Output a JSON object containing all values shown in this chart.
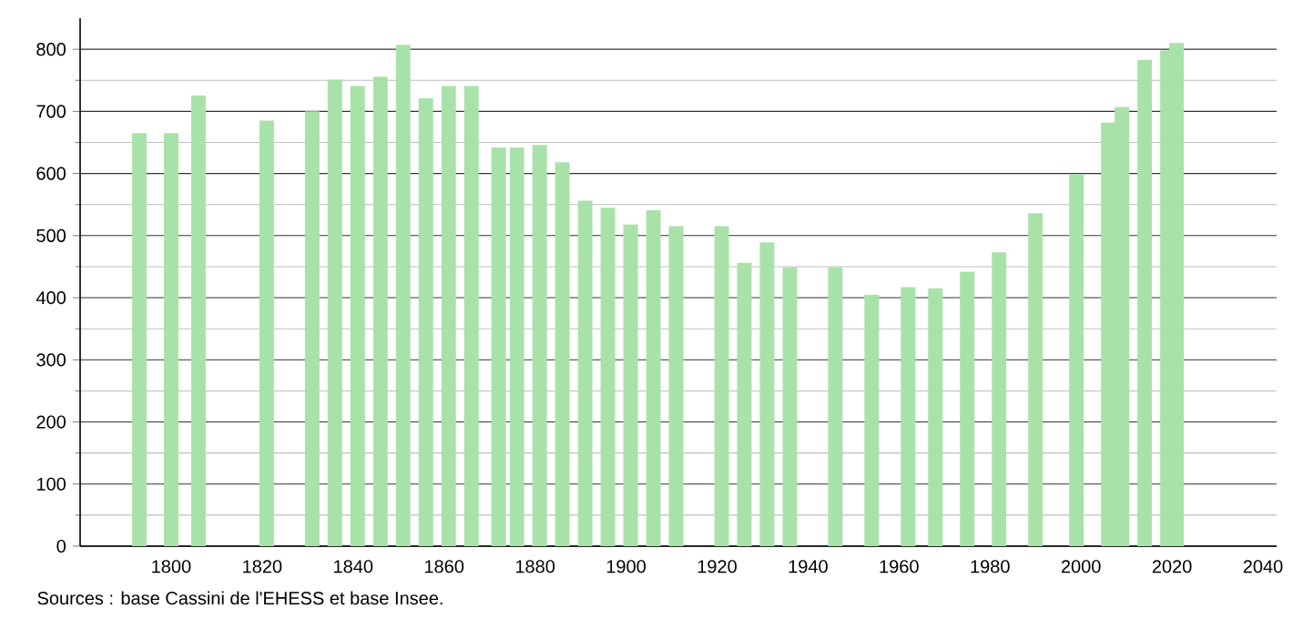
{
  "chart_data": {
    "type": "bar",
    "color": "#a8e2a8",
    "x": [
      1793,
      1800,
      1806,
      1821,
      1831,
      1836,
      1841,
      1846,
      1851,
      1856,
      1861,
      1866,
      1872,
      1876,
      1881,
      1886,
      1891,
      1896,
      1901,
      1906,
      1911,
      1921,
      1926,
      1931,
      1936,
      1946,
      1954,
      1962,
      1968,
      1975,
      1982,
      1990,
      1999,
      2006,
      2009,
      2014,
      2019,
      2021
    ],
    "values": [
      665,
      665,
      726,
      685,
      700,
      751,
      741,
      756,
      807,
      721,
      741,
      741,
      642,
      642,
      646,
      618,
      556,
      545,
      518,
      541,
      515,
      515,
      456,
      489,
      449,
      449,
      405,
      417,
      415,
      442,
      473,
      536,
      599,
      682,
      707,
      783,
      798,
      810
    ],
    "xlim": [
      1780,
      2043
    ],
    "xticks": [
      1800,
      1820,
      1840,
      1860,
      1880,
      1900,
      1920,
      1940,
      1960,
      1980,
      2000,
      2020,
      2040
    ],
    "ylim": [
      0,
      850
    ],
    "yticks": [
      0,
      100,
      200,
      300,
      400,
      500,
      600,
      700,
      800
    ],
    "grid": "y",
    "annotations": [
      "Sources : base Cassini de l'EHESS et base Insee."
    ]
  }
}
